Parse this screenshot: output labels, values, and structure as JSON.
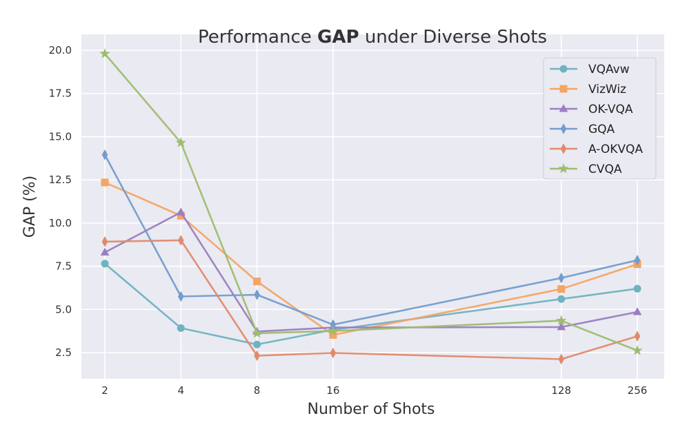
{
  "chart_data": {
    "type": "line",
    "title": {
      "prefix": "Performance ",
      "bold": "GAP",
      "suffix": " under Diverse Shots"
    },
    "xlabel": "Number of Shots",
    "ylabel": "GAP (%)",
    "x": [
      2,
      4,
      8,
      16,
      128,
      256
    ],
    "x_scale": "log2",
    "xlim": [
      2,
      256
    ],
    "ylim": [
      1.5,
      20.0
    ],
    "yticks": [
      "2.5",
      "5.0",
      "7.5",
      "10.0",
      "12.5",
      "15.0",
      "17.5",
      "20.0"
    ],
    "grid": true,
    "legend_position": "top-right",
    "series": [
      {
        "name": "VQAvw",
        "color": "#6fb3c0",
        "marker": "circle",
        "values": [
          7.65,
          3.92,
          2.97,
          3.82,
          5.6,
          6.2
        ]
      },
      {
        "name": "VizWiz",
        "color": "#f5a462",
        "marker": "square",
        "values": [
          12.35,
          10.42,
          6.62,
          3.52,
          6.18,
          7.62
        ]
      },
      {
        "name": "OK-VQA",
        "color": "#9b7ec0",
        "marker": "triangle",
        "values": [
          8.3,
          10.62,
          3.72,
          3.95,
          3.98,
          4.85
        ]
      },
      {
        "name": "GQA",
        "color": "#739dcc",
        "marker": "diamond",
        "values": [
          13.95,
          5.75,
          5.85,
          4.12,
          6.82,
          7.85
        ]
      },
      {
        "name": "A-OKVQA",
        "color": "#e08a6c",
        "marker": "diamond",
        "values": [
          8.92,
          9.0,
          2.32,
          2.48,
          2.12,
          3.45
        ]
      },
      {
        "name": "CVQA",
        "color": "#9dbd6e",
        "marker": "star",
        "values": [
          19.8,
          14.65,
          3.62,
          3.75,
          4.35,
          2.62
        ]
      }
    ]
  }
}
